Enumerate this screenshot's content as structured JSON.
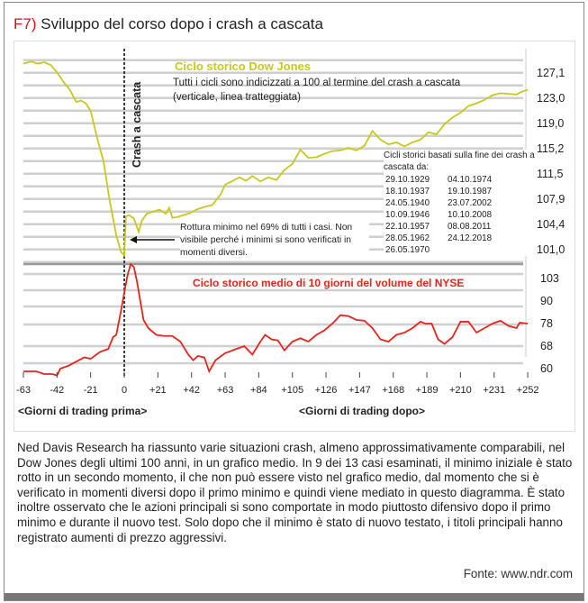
{
  "figure": {
    "number": "F7)",
    "title": "Sviluppo del corso dopo i crash a cascata"
  },
  "chart_data": [
    {
      "type": "line",
      "title": "Ciclo storico Dow Jones",
      "subtitle": "Tutti i cicli sono indicizzati a 100 al termine del crash a cascata (verticale, linea tratteggiata)",
      "vertical_marker": {
        "x": 0,
        "label": "Crash a cascata"
      },
      "annotation": "Rottura minimo nel 69% di tutti i casi. Non visibile perché i minimi si sono verificati in momenti diversi.",
      "dates_title": "Cicli storici basati sulla fine dei crash a cascata da:",
      "dates": [
        "29.10.1929",
        "04.10.1974",
        "18.10.1937",
        "19.10.1987",
        "24.05.1940",
        "23.07.2002",
        "10.09.1946",
        "10.10.2008",
        "22.10.1957",
        "08.08.2011",
        "28.05.1962",
        "24.12.2018",
        "26.05.1970"
      ],
      "yticks": [
        "127,1",
        "123,0",
        "119,0",
        "115,2",
        "111,5",
        "107,9",
        "104,4",
        "101,0"
      ],
      "ylim": [
        99.5,
        129
      ],
      "color": "#c8c81e",
      "x": [
        -63,
        -58,
        -54,
        -50,
        -46,
        -42,
        -38,
        -34,
        -30,
        -27,
        -24,
        -21,
        -17,
        -13,
        -9,
        -5,
        -2,
        0,
        1,
        3,
        6,
        9,
        11,
        14,
        18,
        22,
        26,
        28,
        30,
        33,
        37,
        41,
        45,
        50,
        55,
        60,
        63,
        67,
        72,
        76,
        80,
        85,
        90,
        95,
        100,
        105,
        110,
        115,
        120,
        125,
        130,
        135,
        140,
        145,
        150,
        155,
        160,
        165,
        170,
        175,
        180,
        185,
        190,
        195,
        200,
        205,
        210,
        215,
        220,
        225,
        230,
        235,
        240,
        245,
        248,
        252
      ],
      "values": [
        128.5,
        128.8,
        128.5,
        128.7,
        128.3,
        127.2,
        125.8,
        124.6,
        122.8,
        123.0,
        122.6,
        121.5,
        117.5,
        114.0,
        108.0,
        103.0,
        100.5,
        100.0,
        105.8,
        106.0,
        105.5,
        103.5,
        105.2,
        106.2,
        106.5,
        106.8,
        106.2,
        107.1,
        105.6,
        105.7,
        106.0,
        106.3,
        106.8,
        107.2,
        107.5,
        109.0,
        110.5,
        111.0,
        111.6,
        111.1,
        111.8,
        111.0,
        111.6,
        111.2,
        112.7,
        113.6,
        115.7,
        114.5,
        114.6,
        115.1,
        115.5,
        115.6,
        116.0,
        115.6,
        116.3,
        118.5,
        117.2,
        116.5,
        116.8,
        116.2,
        116.8,
        117.2,
        118.3,
        118.0,
        119.5,
        120.5,
        121.2,
        122.2,
        122.6,
        123.1,
        123.8,
        124.1,
        124.0,
        123.9,
        124.3,
        124.6
      ]
    },
    {
      "type": "line",
      "title": "Ciclo storico medio di 10 giorni del volume del NYSE",
      "yticks": [
        "103",
        "90",
        "78",
        "68",
        "60"
      ],
      "color": "#e8241c",
      "x": [
        -63,
        -55,
        -50,
        -45,
        -42,
        -40,
        -35,
        -30,
        -25,
        -21,
        -15,
        -10,
        -7,
        -5,
        -2,
        0,
        2,
        4,
        6,
        8,
        10,
        12,
        15,
        20,
        25,
        30,
        35,
        40,
        43,
        46,
        50,
        53,
        57,
        63,
        70,
        75,
        80,
        85,
        88,
        92,
        96,
        100,
        105,
        110,
        115,
        120,
        125,
        130,
        135,
        140,
        145,
        150,
        155,
        160,
        165,
        170,
        175,
        180,
        185,
        188,
        192,
        196,
        200,
        205,
        210,
        215,
        220,
        225,
        230,
        235,
        240,
        245,
        247,
        252
      ],
      "values": [
        59,
        59,
        58,
        58,
        57.5,
        60,
        61,
        62.5,
        64,
        63.5,
        66,
        67,
        72,
        73,
        85,
        95,
        104,
        108,
        107,
        101,
        90,
        80,
        76,
        73,
        72.5,
        72.5,
        70,
        65,
        63,
        64.5,
        64,
        59,
        63,
        65.5,
        67,
        68,
        65,
        70,
        73,
        71,
        70.5,
        66.5,
        70,
        71.5,
        70,
        73,
        75,
        78,
        82.5,
        82,
        80,
        79.5,
        76,
        71,
        70,
        73,
        74,
        76,
        79,
        78,
        78,
        71,
        69,
        72,
        79,
        79,
        74,
        76,
        78,
        79.5,
        77,
        76,
        78.5,
        78
      ],
      "xticks": [
        "-63",
        "-42",
        "-21",
        "0",
        "+21",
        "+42",
        "+63",
        "+84",
        "+105",
        "+126",
        "+147",
        "+168",
        "+189",
        "+210",
        "+231",
        "+252"
      ],
      "xlabel_left": "<Giorni di trading prima>",
      "xlabel_right": "<Giorni di trading dopo>"
    }
  ],
  "body_text": "Ned Davis Research ha riassunto varie situazioni crash, almeno approssimativamente comparabili, nel Dow Jones degli ultimi 100 anni, in un grafico medio. In 9 dei 13 casi esaminati, il minimo iniziale è stato rotto in un secondo momento, il che non può essere visto nel grafico medio, dal momento che si è verificato in momenti diversi dopo il primo minimo e quindi viene mediato in questo diagramma. È stato inoltre osservato che le azioni principali si sono comportate in modo piuttosto difensivo dopo il primo minimo e durante il nuovo test. Solo dopo che il minimo è stato di nuovo testato, i titoli principali hanno registrato aumenti di prezzo aggressivi.",
  "source": "Fonte: www.ndr.com"
}
